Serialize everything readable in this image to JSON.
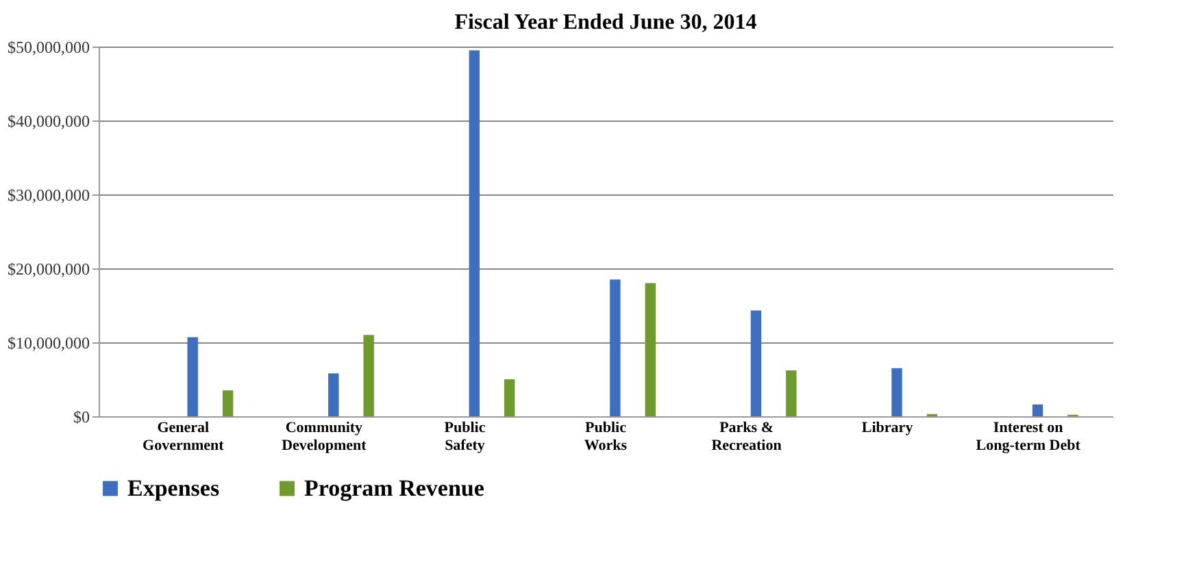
{
  "chart_data": {
    "type": "bar",
    "title": "Fiscal Year Ended June 30, 2014",
    "categories": [
      "General Government",
      "Community Development",
      "Public Safety",
      "Public Works",
      "Parks & Recreation",
      "Library",
      "Interest on Long-term Debt"
    ],
    "series": [
      {
        "name": "Expenses",
        "color": "#3d6fc0",
        "values": [
          10700000,
          5800000,
          49500000,
          18500000,
          14300000,
          6500000,
          1600000
        ]
      },
      {
        "name": "Program Revenue",
        "color": "#6f9a2c",
        "values": [
          3500000,
          11000000,
          5000000,
          18000000,
          6200000,
          300000,
          200000
        ]
      }
    ],
    "ylim": [
      0,
      50000000
    ],
    "yticks": [
      {
        "value": 0,
        "label": "$0"
      },
      {
        "value": 10000000,
        "label": "$10,000,000"
      },
      {
        "value": 20000000,
        "label": "$20,000,000"
      },
      {
        "value": 30000000,
        "label": "$30,000,000"
      },
      {
        "value": 40000000,
        "label": "$40,000,000"
      },
      {
        "value": 50000000,
        "label": "$50,000,000"
      }
    ],
    "grid": "y",
    "legend": "bottom"
  }
}
